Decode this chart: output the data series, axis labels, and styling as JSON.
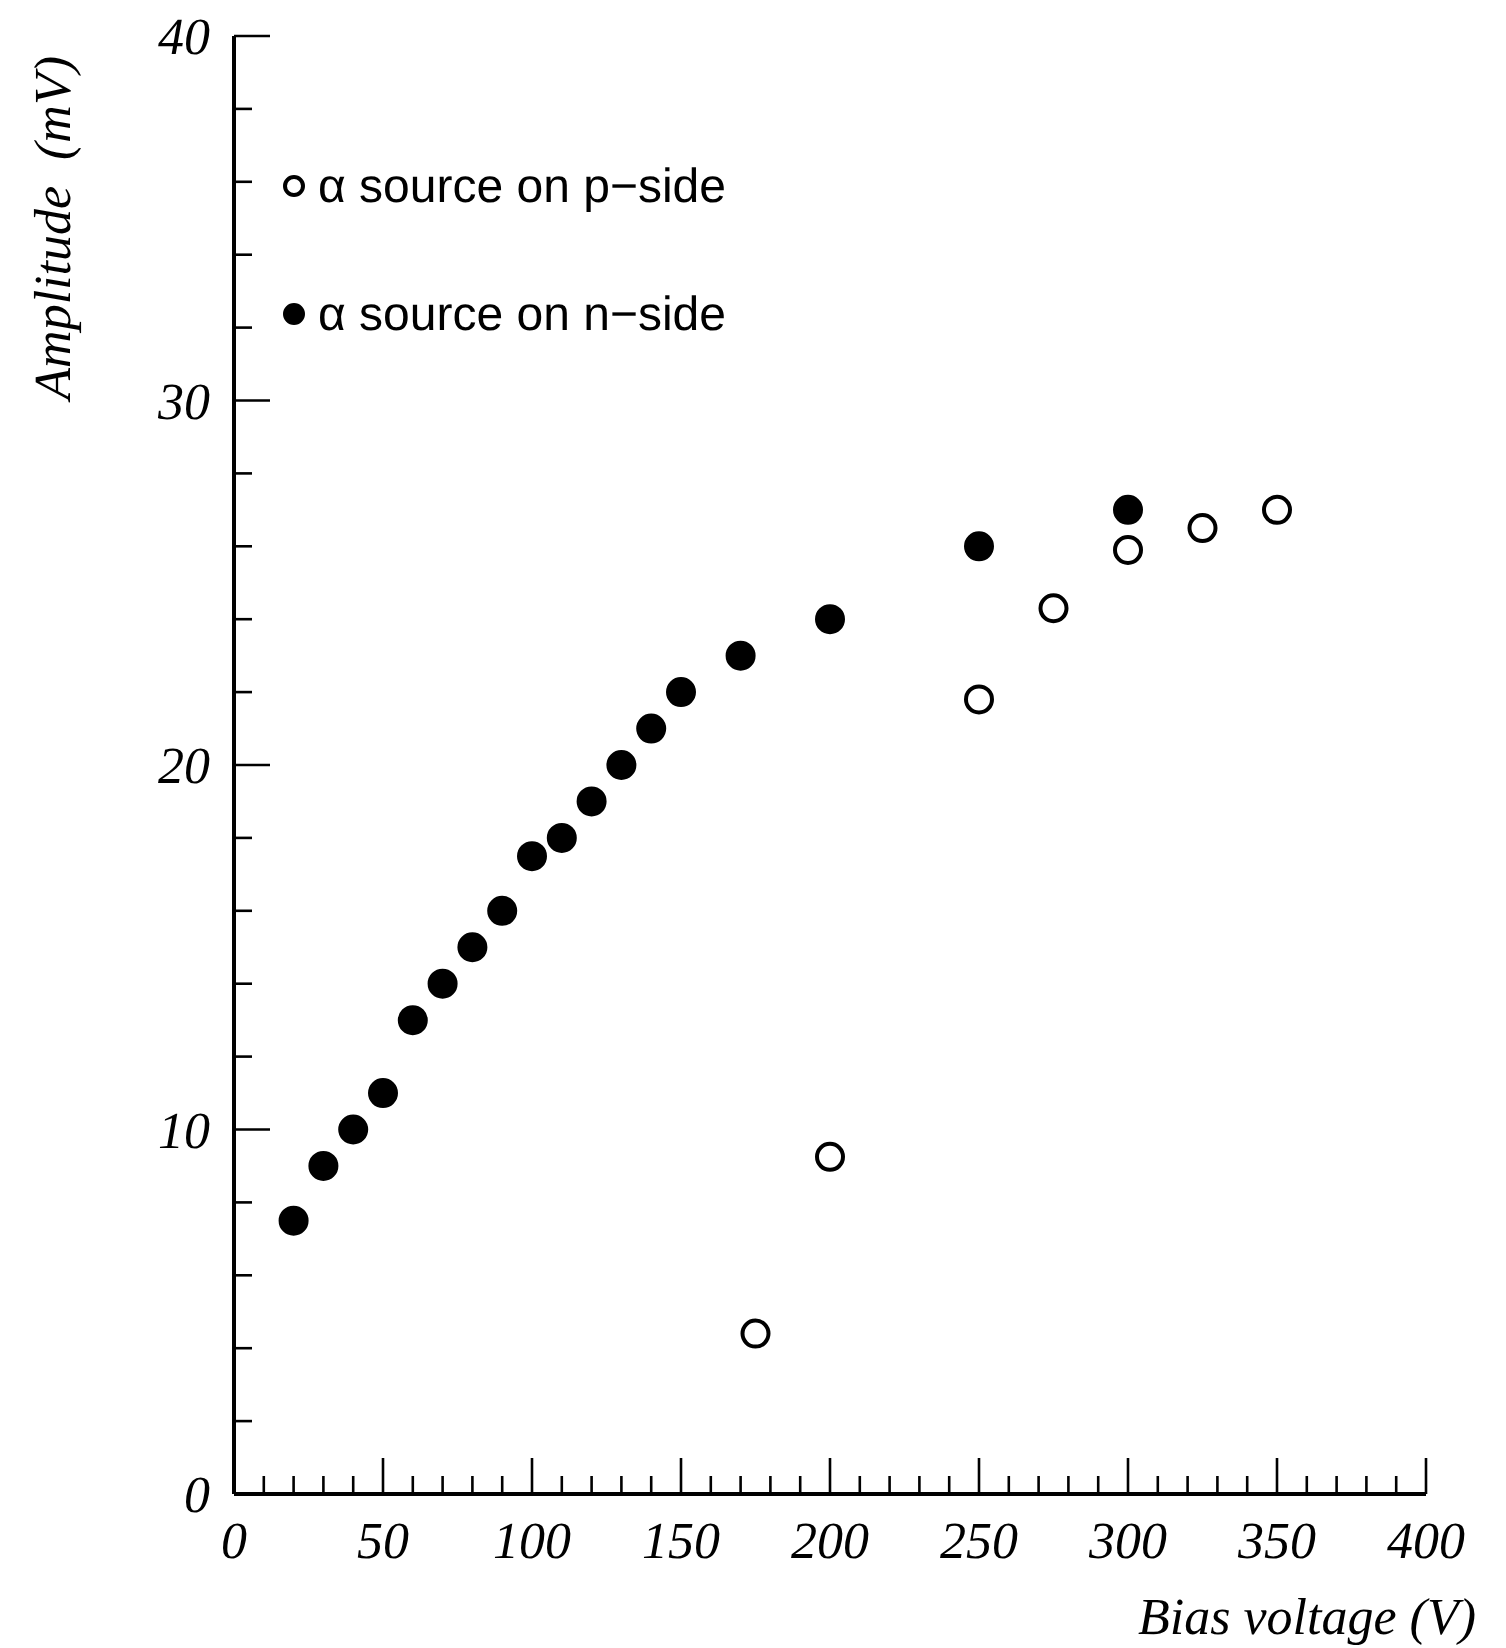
{
  "chart_data": {
    "type": "scatter",
    "xlabel": "Bias voltage (V)",
    "ylabel": "Amplitude  (mV)",
    "xlim": [
      0,
      400
    ],
    "ylim": [
      0,
      40
    ],
    "xticks": [
      0,
      {
        "value": 10,
        "label": null
      },
      {
        "value": 20,
        "label": null
      },
      {
        "value": 30,
        "label": null
      },
      {
        "value": 40,
        "label": null
      },
      50,
      {
        "value": 60,
        "label": null
      },
      {
        "value": 70,
        "label": null
      },
      {
        "value": 80,
        "label": null
      },
      {
        "value": 90,
        "label": null
      },
      100,
      {
        "value": 110,
        "label": null
      },
      {
        "value": 120,
        "label": null
      },
      {
        "value": 130,
        "label": null
      },
      {
        "value": 140,
        "label": null
      },
      150,
      {
        "value": 160,
        "label": null
      },
      {
        "value": 170,
        "label": null
      },
      {
        "value": 180,
        "label": null
      },
      {
        "value": 190,
        "label": null
      },
      200,
      {
        "value": 210,
        "label": null
      },
      {
        "value": 220,
        "label": null
      },
      {
        "value": 230,
        "label": null
      },
      {
        "value": 240,
        "label": null
      },
      250,
      {
        "value": 260,
        "label": null
      },
      {
        "value": 270,
        "label": null
      },
      {
        "value": 280,
        "label": null
      },
      {
        "value": 290,
        "label": null
      },
      300,
      {
        "value": 310,
        "label": null
      },
      {
        "value": 320,
        "label": null
      },
      {
        "value": 330,
        "label": null
      },
      {
        "value": 340,
        "label": null
      },
      350,
      {
        "value": 360,
        "label": null
      },
      {
        "value": 370,
        "label": null
      },
      {
        "value": 380,
        "label": null
      },
      {
        "value": 390,
        "label": null
      },
      400
    ],
    "yticks": [
      0,
      {
        "value": 2,
        "label": null
      },
      {
        "value": 4,
        "label": null
      },
      {
        "value": 6,
        "label": null
      },
      {
        "value": 8,
        "label": null
      },
      10,
      {
        "value": 12,
        "label": null
      },
      {
        "value": 14,
        "label": null
      },
      {
        "value": 16,
        "label": null
      },
      {
        "value": 18,
        "label": null
      },
      20,
      {
        "value": 22,
        "label": null
      },
      {
        "value": 24,
        "label": null
      },
      {
        "value": 26,
        "label": null
      },
      {
        "value": 28,
        "label": null
      },
      30,
      {
        "value": 32,
        "label": null
      },
      {
        "value": 34,
        "label": null
      },
      {
        "value": 36,
        "label": null
      },
      {
        "value": 38,
        "label": null
      },
      40
    ],
    "grid": false,
    "legend": "top left",
    "marker": "circle",
    "series": [
      {
        "name": "α source on p−side",
        "color": "#ffffff",
        "x": [
          175,
          200,
          250,
          275,
          300,
          325,
          350
        ],
        "values": [
          4.4,
          9.25,
          21.8,
          24.3,
          25.9,
          26.5,
          27
        ]
      },
      {
        "name": "α source on n−side",
        "color": "#000000",
        "x": [
          20,
          30,
          40,
          50,
          60,
          70,
          80,
          90,
          100,
          110,
          120,
          130,
          140,
          150,
          170,
          200,
          250,
          300
        ],
        "values": [
          7.5,
          9,
          10,
          11,
          13,
          14,
          15,
          16,
          17.5,
          18,
          19,
          20,
          21,
          22,
          23,
          24,
          26,
          27
        ]
      }
    ]
  }
}
